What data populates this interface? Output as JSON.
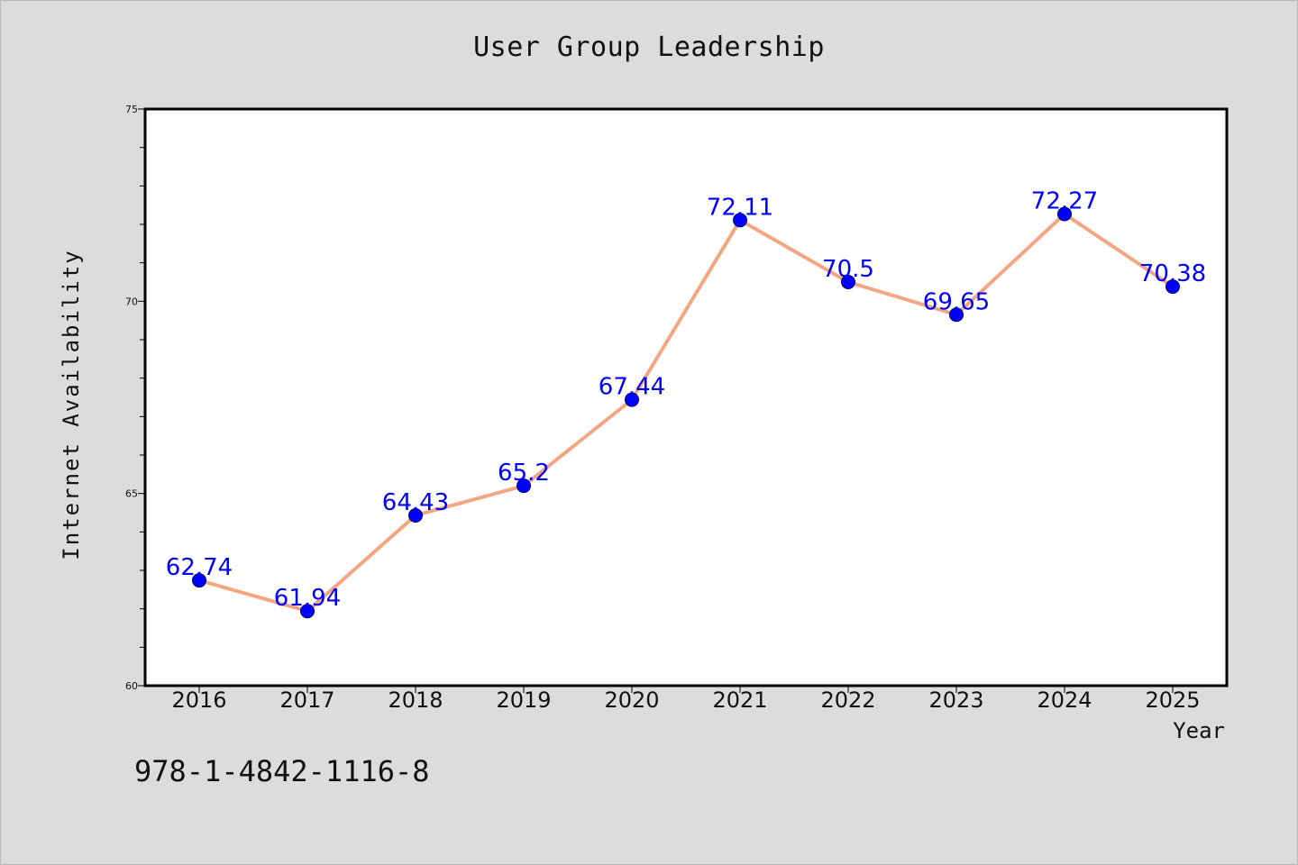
{
  "chart_data": {
    "type": "line",
    "title": "User Group Leadership",
    "xlabel": "Year",
    "ylabel": "Internet Availability",
    "categories": [
      "2016",
      "2017",
      "2018",
      "2019",
      "2020",
      "2021",
      "2022",
      "2023",
      "2024",
      "2025"
    ],
    "series": [
      {
        "values": [
          62.74,
          61.94,
          64.43,
          65.2,
          67.44,
          72.11,
          70.5,
          69.65,
          72.27,
          70.38
        ],
        "data_labels": [
          "62.74",
          "61.94",
          "64.43",
          "65.2",
          "67.44",
          "72.11",
          "70.5",
          "69.65",
          "72.27",
          "70.38"
        ],
        "line_color": "#f4a582",
        "marker_color": "#0000ff"
      }
    ],
    "ylim": [
      60,
      75
    ],
    "y_ticks": [
      "60",
      "65",
      "70",
      "75"
    ],
    "grid": false,
    "legend": "none",
    "plot_background": "#ffffff"
  },
  "figure_text": {
    "isbn": "978-1-4842-1116-8"
  },
  "colors": {
    "figure_background": "#dcdcdc",
    "label_color": "#0000ff"
  }
}
